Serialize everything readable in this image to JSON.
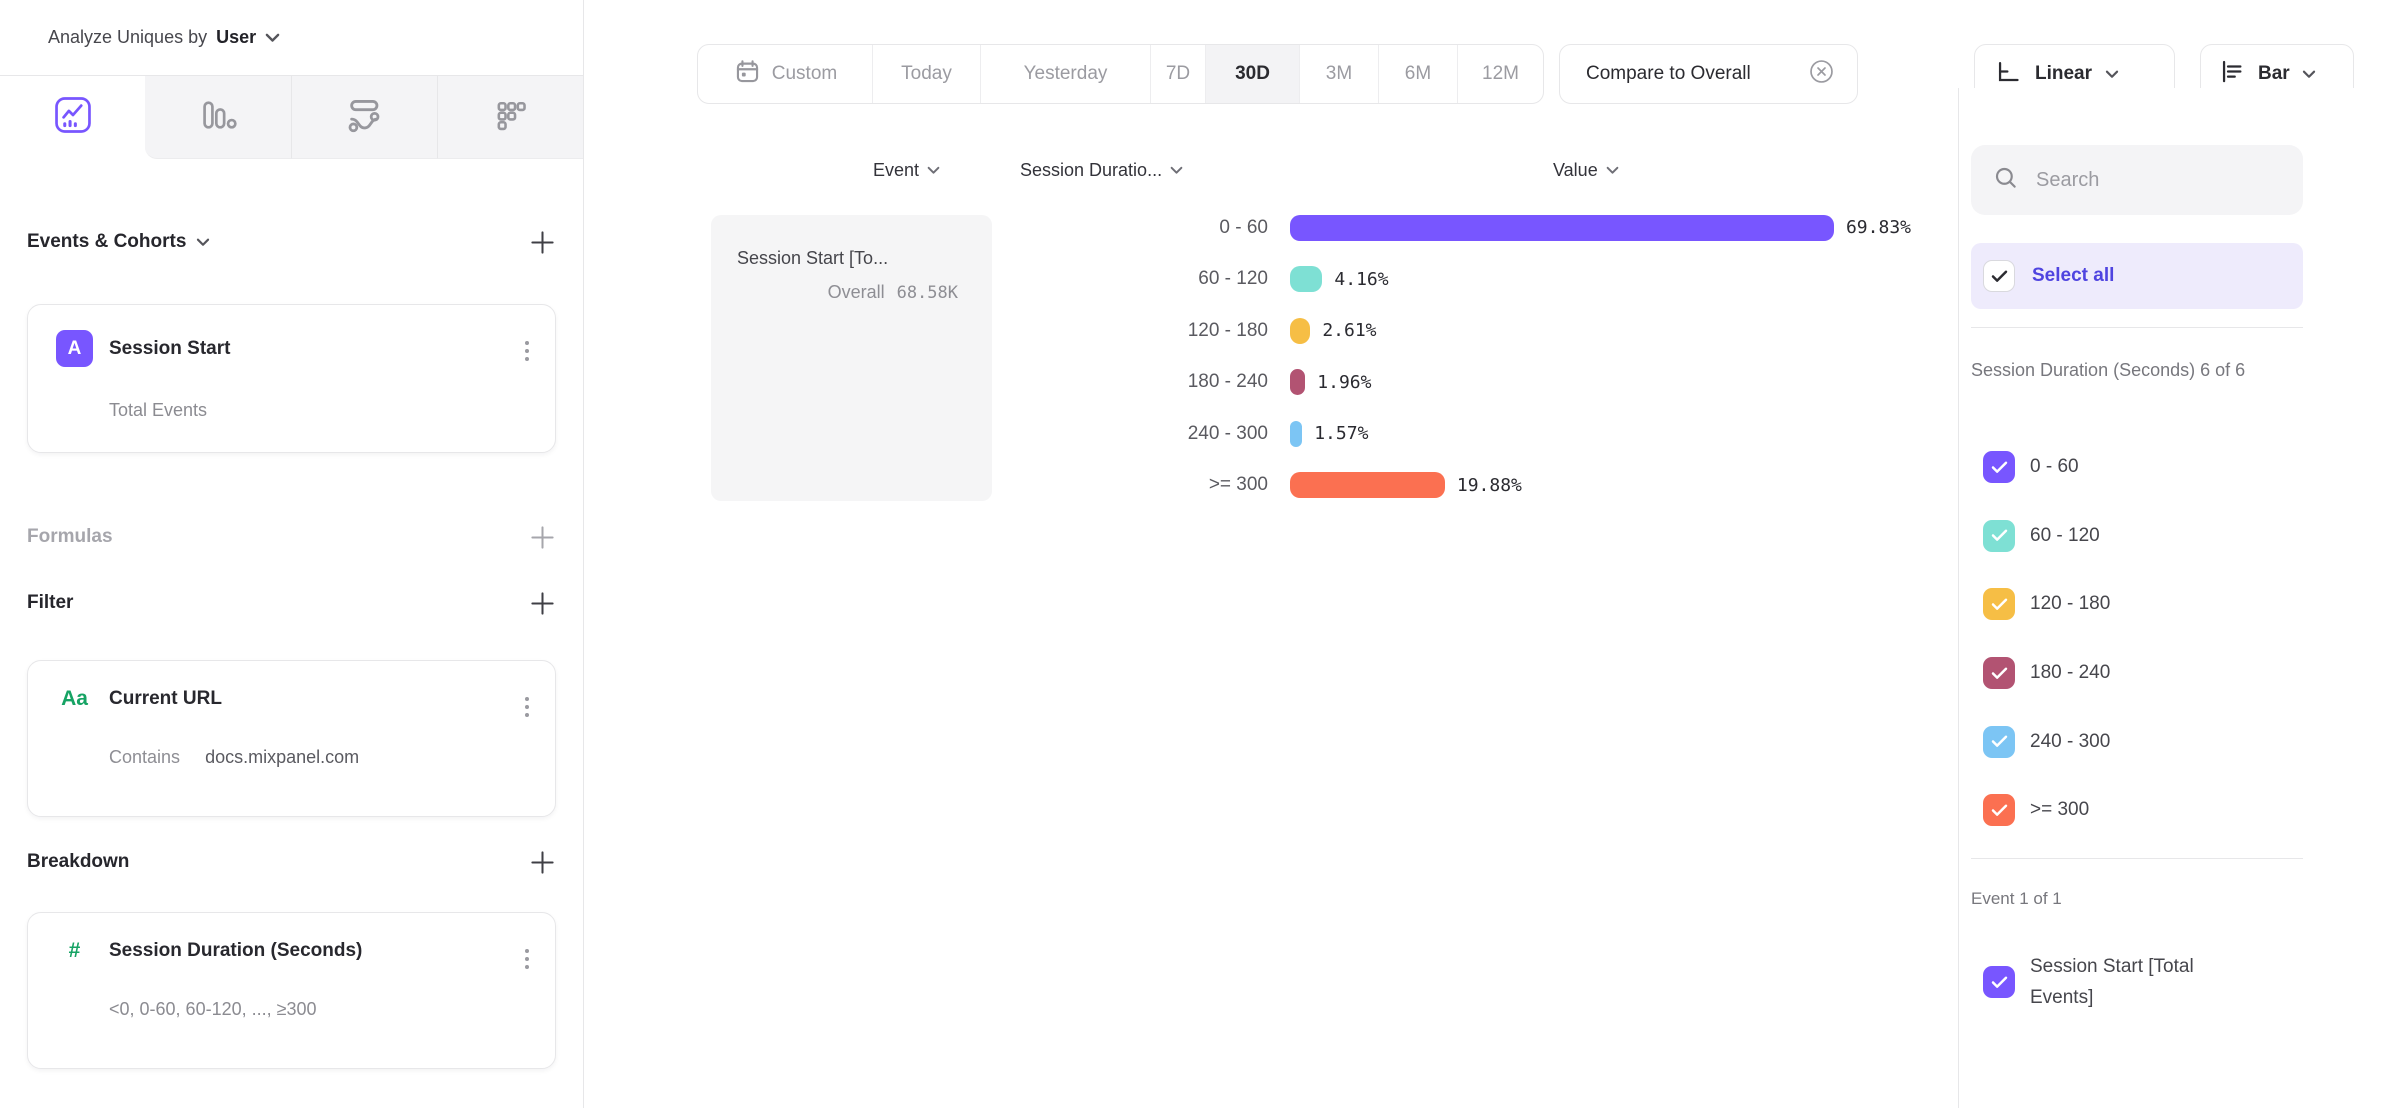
{
  "analyze": {
    "label": "Analyze Uniques by",
    "value": "User"
  },
  "sidebar": {
    "chart_tabs": [
      "insights-line-chart",
      "bar-chart",
      "flows",
      "metrics-grid"
    ],
    "active_tab": "insights-line-chart",
    "events_section": {
      "title": "Events & Cohorts",
      "card": {
        "badge": "A",
        "title": "Session Start",
        "subtitle": "Total Events"
      }
    },
    "formulas_section": {
      "title": "Formulas"
    },
    "filter_section": {
      "title": "Filter",
      "card": {
        "icon": "Aa",
        "title": "Current URL",
        "operator": "Contains",
        "value": "docs.mixpanel.com"
      }
    },
    "breakdown_section": {
      "title": "Breakdown",
      "card": {
        "icon": "#",
        "title": "Session Duration (Seconds)",
        "subtitle": "<0, 0-60, 60-120, ..., ≥300"
      }
    }
  },
  "toolbar": {
    "date_ranges": [
      "Custom",
      "Today",
      "Yesterday",
      "7D",
      "30D",
      "3M",
      "6M",
      "12M"
    ],
    "active_range": "30D",
    "compare_label": "Compare to Overall",
    "scale": {
      "label": "Linear"
    },
    "chart_type": {
      "label": "Bar"
    }
  },
  "table": {
    "headers": {
      "event": "Event",
      "breakdown": "Session Duratio...",
      "value": "Value"
    },
    "event_cell": {
      "title": "Session Start [To...",
      "overall_label": "Overall",
      "overall_value": "68.58K"
    }
  },
  "chart_data": {
    "type": "bar",
    "orientation": "horizontal",
    "series_name": "Session Start [Total Events]",
    "categories": [
      "0 - 60",
      "60 - 120",
      "120 - 180",
      "180 - 240",
      "240 - 300",
      ">= 300"
    ],
    "values": [
      69.83,
      4.16,
      2.61,
      1.96,
      1.57,
      19.88
    ],
    "value_labels": [
      "69.83%",
      "4.16%",
      "2.61%",
      "1.96%",
      "1.57%",
      "19.88%"
    ],
    "unit": "%",
    "xlim": [
      0,
      100
    ],
    "overall_value": "68.58K",
    "colors": [
      "#7856ff",
      "#7ee0d4",
      "#f6be45",
      "#b25372",
      "#7cc5f4",
      "#fb7051"
    ]
  },
  "legend": {
    "search_placeholder": "Search",
    "select_all_label": "Select all",
    "group_label": "Session Duration (Seconds) 6 of 6",
    "items": [
      {
        "label": "0 - 60",
        "color": "#7856ff",
        "checked": true
      },
      {
        "label": "60 - 120",
        "color": "#7ee0d4",
        "checked": true
      },
      {
        "label": "120 - 180",
        "color": "#f6be45",
        "checked": true
      },
      {
        "label": "180 - 240",
        "color": "#b25372",
        "checked": true
      },
      {
        "label": "240 - 300",
        "color": "#7cc5f4",
        "checked": true
      },
      {
        "label": ">= 300",
        "color": "#fb7051",
        "checked": true
      }
    ],
    "event_group_label": "Event 1 of 1",
    "event_item": {
      "label": "Session Start [Total Events]",
      "color": "#7856ff",
      "checked": true
    }
  },
  "colors": {
    "accent": "#7856ff",
    "interactive_text": "#4f44e0",
    "select_all_bg": "#eeebfc",
    "border": "#e7e7e9"
  }
}
